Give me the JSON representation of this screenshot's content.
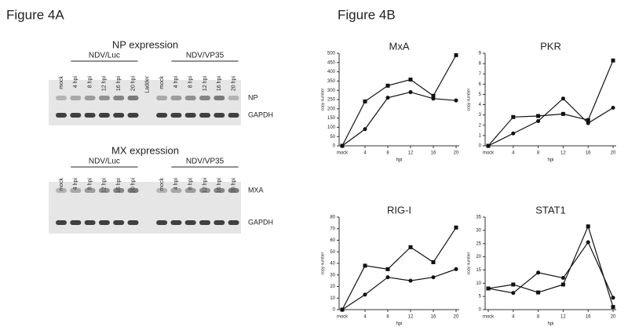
{
  "figure_a": {
    "title": "Figure 4A",
    "panels": [
      {
        "title": "NP expression",
        "groups": [
          "NDV/Luc",
          "NDV/VP35"
        ],
        "lanes": [
          "mock",
          "4 hpi",
          "8 hpi",
          "12 hpi",
          "16 hpi",
          "20 hpi",
          "Ladder",
          "mock",
          "4 hpi",
          "8 hpi",
          "12 hpi",
          "16 hpi",
          "20 hpi"
        ],
        "bands": [
          "NP",
          "GAPDH"
        ]
      },
      {
        "title": "MX expression",
        "groups": [
          "NDV/Luc",
          "NDV/VP35"
        ],
        "lanes": [
          "mock",
          "4 hpi",
          "8 hpi",
          "12 hpi",
          "16 hpi",
          "20 hpi",
          "mock",
          "4 hpi",
          "8 hpi",
          "12 hpi",
          "16 hpi",
          "20 hpi"
        ],
        "bands": [
          "MXA",
          "GAPDH"
        ]
      }
    ]
  },
  "figure_b": {
    "title": "Figure 4B"
  },
  "chart_data": [
    {
      "type": "line",
      "title": "MxA",
      "x_label": "hpi",
      "y_label": "copy number",
      "categories": [
        "mock",
        "4",
        "8",
        "12",
        "16",
        "20"
      ],
      "ylim": [
        0,
        500
      ],
      "yticks": [
        0,
        50,
        100,
        150,
        200,
        250,
        300,
        350,
        400,
        450,
        500
      ],
      "series": [
        {
          "marker": "square",
          "color": "#111111",
          "values": [
            0,
            240,
            325,
            358,
            270,
            490
          ]
        },
        {
          "marker": "circle",
          "color": "#111111",
          "values": [
            0,
            90,
            260,
            290,
            255,
            245
          ]
        }
      ]
    },
    {
      "type": "line",
      "title": "PKR",
      "x_label": "hpi",
      "y_label": "copy number",
      "categories": [
        "mock",
        "4",
        "8",
        "12",
        "16",
        "20"
      ],
      "ylim": [
        0,
        9
      ],
      "yticks": [
        0,
        1,
        2,
        3,
        4,
        5,
        6,
        7,
        8,
        9
      ],
      "series": [
        {
          "marker": "square",
          "color": "#111111",
          "values": [
            0,
            2.8,
            2.9,
            3.1,
            2.5,
            8.3
          ]
        },
        {
          "marker": "circle",
          "color": "#111111",
          "values": [
            0,
            1.2,
            2.4,
            4.6,
            2.2,
            3.7
          ]
        }
      ]
    },
    {
      "type": "line",
      "title": "RIG-I",
      "x_label": "hpi",
      "y_label": "copy number",
      "categories": [
        "mock",
        "4",
        "8",
        "12",
        "16",
        "20"
      ],
      "ylim": [
        0,
        80
      ],
      "yticks": [
        0,
        10,
        20,
        30,
        40,
        50,
        60,
        70,
        80
      ],
      "series": [
        {
          "marker": "square",
          "color": "#111111",
          "values": [
            0,
            38,
            35,
            54,
            41,
            71
          ]
        },
        {
          "marker": "circle",
          "color": "#111111",
          "values": [
            0,
            13,
            28,
            25,
            28,
            35
          ]
        }
      ]
    },
    {
      "type": "line",
      "title": "STAT1",
      "x_label": "hpi",
      "y_label": "copy number",
      "categories": [
        "mock",
        "4",
        "8",
        "12",
        "16",
        "20"
      ],
      "ylim": [
        0,
        35
      ],
      "yticks": [
        0,
        5,
        10,
        15,
        20,
        25,
        30,
        35
      ],
      "series": [
        {
          "marker": "square",
          "color": "#111111",
          "values": [
            8,
            9.5,
            6.5,
            9.5,
            31.5,
            1
          ]
        },
        {
          "marker": "circle",
          "color": "#111111",
          "values": [
            8,
            6.3,
            14,
            12,
            25.5,
            4.5
          ]
        }
      ]
    }
  ]
}
